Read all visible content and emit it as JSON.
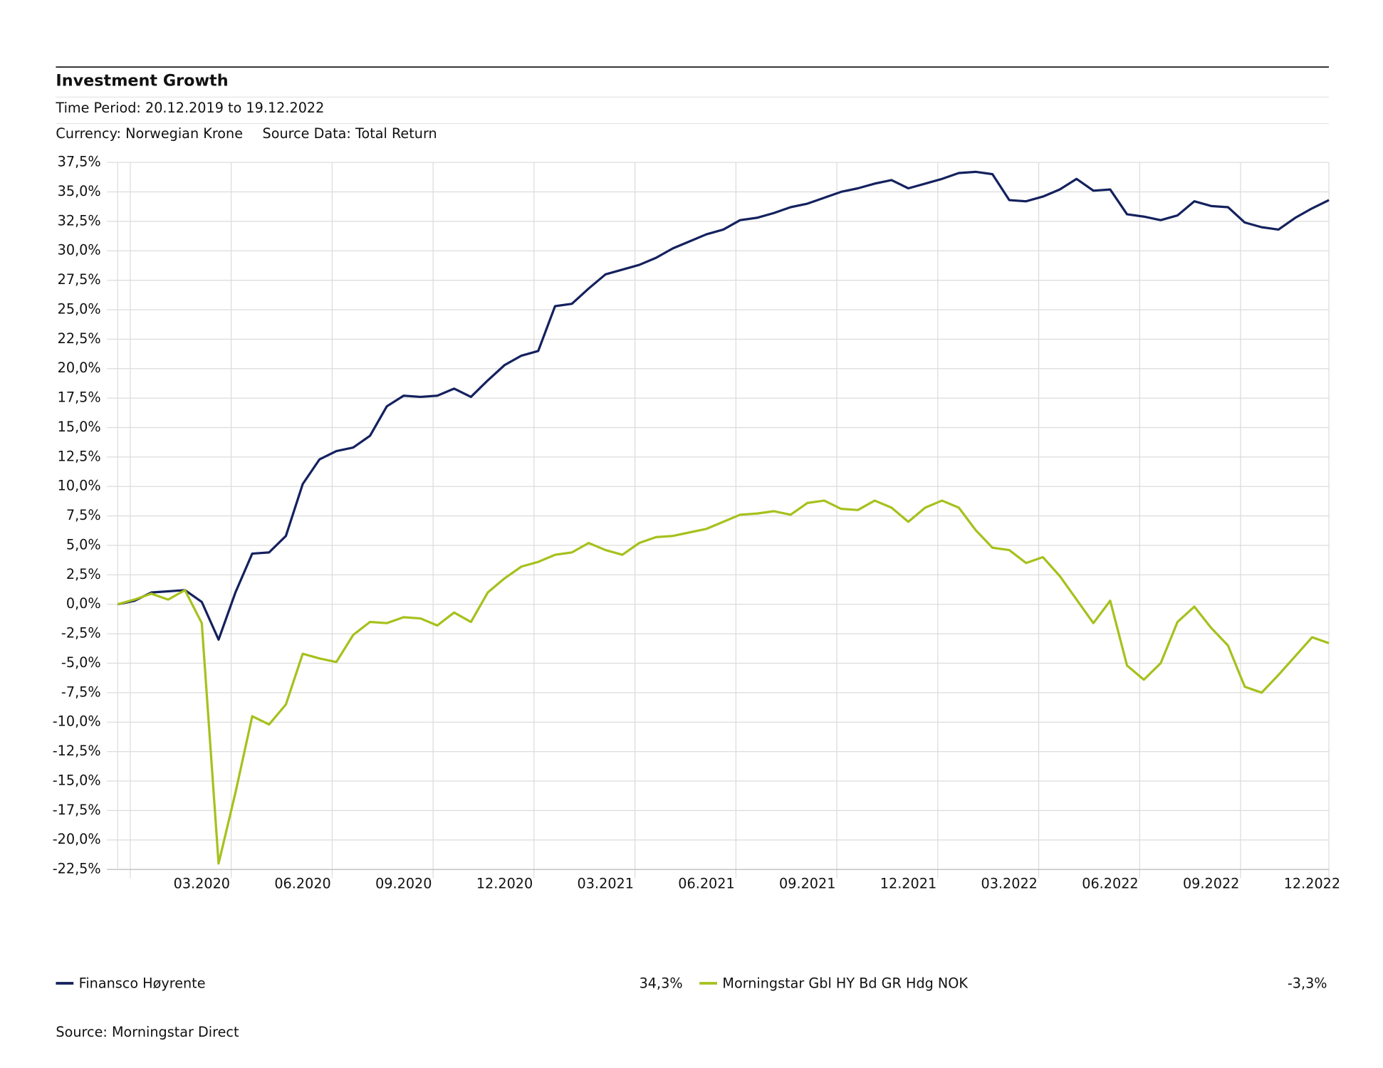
{
  "chart_data": {
    "type": "line",
    "title": "Investment Growth",
    "subtitle": "Time Period: 20.12.2019 to 19.12.2022",
    "currency": "Currency: Norwegian Krone",
    "source_data": "Source Data: Total Return",
    "source": "Source: Morningstar Direct",
    "categories": [
      null,
      null,
      null,
      null,
      null,
      "03.2020",
      null,
      null,
      null,
      null,
      null,
      "06.2020",
      null,
      null,
      null,
      null,
      null,
      "09.2020",
      null,
      null,
      null,
      null,
      null,
      "12.2020",
      null,
      null,
      null,
      null,
      null,
      "03.2021",
      null,
      null,
      null,
      null,
      null,
      "06.2021",
      null,
      null,
      null,
      null,
      null,
      "09.2021",
      null,
      null,
      null,
      null,
      null,
      "12.2021",
      null,
      null,
      null,
      null,
      null,
      "03.2022",
      null,
      null,
      null,
      null,
      null,
      "06.2022",
      null,
      null,
      null,
      null,
      null,
      "09.2022",
      null,
      null,
      null,
      null,
      null,
      "12.2022",
      null
    ],
    "series": [
      {
        "name": "Finansco Høyrente",
        "color": "#14215e",
        "total_return": {
          "value": 34.3,
          "label": "34,3%"
        },
        "values": [
          0.0,
          0.3,
          1.0,
          1.1,
          1.2,
          0.2,
          -3.0,
          1.0,
          4.3,
          4.4,
          5.8,
          10.2,
          12.3,
          13.0,
          13.3,
          14.3,
          16.8,
          17.7,
          17.6,
          17.7,
          18.3,
          17.6,
          19.0,
          20.3,
          21.1,
          21.5,
          25.3,
          25.5,
          26.8,
          28.0,
          28.4,
          28.8,
          29.4,
          30.2,
          30.8,
          31.4,
          31.8,
          32.6,
          32.8,
          33.2,
          33.7,
          34.0,
          34.5,
          35.0,
          35.3,
          35.7,
          36.0,
          35.3,
          35.7,
          36.1,
          36.6,
          36.7,
          36.5,
          34.3,
          34.2,
          34.6,
          35.2,
          36.1,
          35.1,
          35.2,
          33.1,
          32.9,
          32.6,
          33.0,
          34.2,
          33.8,
          33.7,
          32.4,
          32.0,
          31.8,
          32.8,
          33.6,
          34.3
        ]
      },
      {
        "name": "Morningstar Gbl HY Bd GR Hdg NOK",
        "color": "#a6c11c",
        "total_return": {
          "value": -3.3,
          "label": "-3,3%"
        },
        "values": [
          0.0,
          0.4,
          0.9,
          0.4,
          1.2,
          -1.6,
          -22.0,
          -16.0,
          -9.5,
          -10.2,
          -8.5,
          -4.2,
          -4.6,
          -4.9,
          -2.6,
          -1.5,
          -1.6,
          -1.1,
          -1.2,
          -1.8,
          -0.7,
          -1.5,
          1.0,
          2.2,
          3.2,
          3.6,
          4.2,
          4.4,
          5.2,
          4.6,
          4.2,
          5.2,
          5.7,
          5.8,
          6.1,
          6.4,
          7.0,
          7.6,
          7.7,
          7.9,
          7.6,
          8.6,
          8.8,
          8.1,
          8.0,
          8.8,
          8.2,
          7.0,
          8.2,
          8.8,
          8.2,
          6.3,
          4.8,
          4.6,
          3.5,
          4.0,
          2.4,
          0.4,
          -1.6,
          0.3,
          -5.2,
          -6.4,
          -5.0,
          -1.5,
          -0.2,
          -2.0,
          -3.5,
          -7.0,
          -7.5,
          -6.0,
          -4.4,
          -2.8,
          -3.3
        ]
      }
    ],
    "ylim": [
      -22.5,
      37.5
    ],
    "yticks": [
      {
        "value": -22.5,
        "label": "-22,5%"
      },
      {
        "value": -20,
        "label": "-20,0%"
      },
      {
        "value": -17.5,
        "label": "-17,5%"
      },
      {
        "value": -15,
        "label": "-15,0%"
      },
      {
        "value": -12.5,
        "label": "-12,5%"
      },
      {
        "value": -10,
        "label": "-10,0%"
      },
      {
        "value": -7.5,
        "label": "-7,5%"
      },
      {
        "value": -5,
        "label": "-5,0%"
      },
      {
        "value": -2.5,
        "label": "-2,5%"
      },
      {
        "value": 0,
        "label": "0,0%"
      },
      {
        "value": 2.5,
        "label": "2,5%"
      },
      {
        "value": 5,
        "label": "5,0%"
      },
      {
        "value": 7.5,
        "label": "7,5%"
      },
      {
        "value": 10,
        "label": "10,0%"
      },
      {
        "value": 12.5,
        "label": "12,5%"
      },
      {
        "value": 15,
        "label": "15,0%"
      },
      {
        "value": 17.5,
        "label": "17,5%"
      },
      {
        "value": 20,
        "label": "20,0%"
      },
      {
        "value": 22.5,
        "label": "22,5%"
      },
      {
        "value": 25,
        "label": "25,0%"
      },
      {
        "value": 27.5,
        "label": "27,5%"
      },
      {
        "value": 30,
        "label": "30,0%"
      },
      {
        "value": 32.5,
        "label": "32,5%"
      },
      {
        "value": 35,
        "label": "35,0%"
      },
      {
        "value": 37.5,
        "label": "37,5%"
      }
    ],
    "grid": true
  }
}
